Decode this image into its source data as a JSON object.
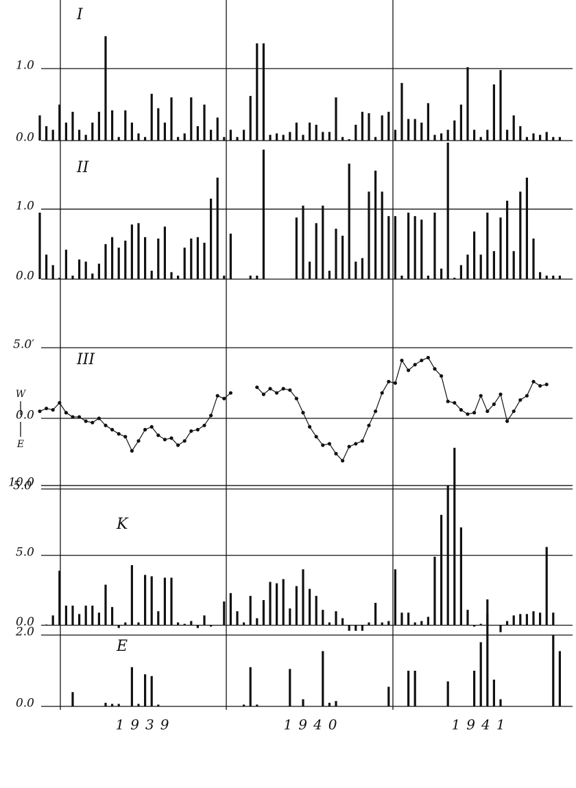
{
  "chart_data": [
    {
      "type": "bar",
      "label": "I",
      "ylim": [
        0,
        1.9
      ],
      "yticks": [
        {
          "value": 0,
          "label": "0.0"
        },
        {
          "value": 1,
          "label": "1.0"
        }
      ],
      "values": [
        0.35,
        0.2,
        0.15,
        0.5,
        0.25,
        0.4,
        0.15,
        0.08,
        0.25,
        0.4,
        1.45,
        0.42,
        0.05,
        0.42,
        0.25,
        0.1,
        0.05,
        0.65,
        0.45,
        0.25,
        0.6,
        0.05,
        0.1,
        0.6,
        0.2,
        0.5,
        0.15,
        0.32,
        0.05,
        0.15,
        0.05,
        0.15,
        0.62,
        1.35,
        1.35,
        0.08,
        0.1,
        0.08,
        0.12,
        0.25,
        0.08,
        0.25,
        0.22,
        0.12,
        0.12,
        0.6,
        0.05,
        0.02,
        0.22,
        0.4,
        0.38,
        0.05,
        0.35,
        0.4,
        0.15,
        0.8,
        0.3,
        0.3,
        0.25,
        0.52,
        0.08,
        0.1,
        0.15,
        0.28,
        0.5,
        1.02,
        0.15,
        0.05,
        0.15,
        0.78,
        0.98,
        0.15,
        0.35,
        0.2,
        0.05,
        0.1,
        0.08,
        0.12,
        0.05,
        0.05
      ]
    },
    {
      "type": "bar",
      "label": "II",
      "ylim": [
        0,
        1.93
      ],
      "yticks": [
        {
          "value": 0,
          "label": "0.0"
        },
        {
          "value": 1,
          "label": "1.0"
        }
      ],
      "values": [
        0.95,
        0.35,
        0.2,
        0.02,
        0.42,
        0.05,
        0.28,
        0.25,
        0.08,
        0.22,
        0.5,
        0.6,
        0.45,
        0.55,
        0.78,
        0.8,
        0.6,
        0.12,
        0.58,
        0.75,
        0.1,
        0.05,
        0.45,
        0.58,
        0.6,
        0.52,
        1.15,
        1.45,
        0.05,
        0.65,
        0,
        0,
        0.05,
        0.05,
        1.85,
        0,
        0,
        0,
        0,
        0.88,
        1.05,
        0.25,
        0.8,
        1.05,
        0.12,
        0.72,
        0.62,
        1.65,
        0.25,
        0.3,
        1.25,
        1.55,
        1.25,
        0.9,
        0.9,
        0.05,
        0.95,
        0.9,
        0.85,
        0.05,
        0.95,
        0.15,
        1.95,
        0.02,
        0.2,
        0.35,
        0.68,
        0.35,
        0.95,
        0.4,
        0.88,
        1.12,
        0.4,
        1.25,
        1.45,
        0.58,
        0.1,
        0.05,
        0.05,
        0.05
      ]
    },
    {
      "type": "line",
      "label": "III",
      "ylim": [
        -5,
        5
      ],
      "yticks": [
        {
          "value": -5,
          "label": "5.0′"
        },
        {
          "value": 0,
          "label": "0.0"
        },
        {
          "value": 5,
          "label": "5.0′"
        }
      ],
      "direction_labels": [
        "W",
        "E"
      ],
      "values": [
        0.5,
        0.7,
        0.6,
        1.1,
        0.4,
        0.1,
        0.1,
        -0.2,
        -0.3,
        0,
        -0.5,
        -0.8,
        -1.1,
        -1.3,
        -2.3,
        -1.6,
        -0.8,
        -0.6,
        -1.2,
        -1.5,
        -1.4,
        -1.9,
        -1.6,
        -0.9,
        -0.8,
        -0.5,
        0.2,
        1.6,
        1.4,
        1.8,
        null,
        null,
        null,
        2.2,
        1.7,
        2.1,
        1.8,
        2.1,
        2.0,
        1.4,
        0.4,
        -0.6,
        -1.3,
        -1.9,
        -1.8,
        -2.5,
        -3.0,
        -2.0,
        -1.8,
        -1.6,
        -0.5,
        0.5,
        1.8,
        2.6,
        2.5,
        4.1,
        3.4,
        3.8,
        4.1,
        4.3,
        3.5,
        3.0,
        1.2,
        1.1,
        0.6,
        0.3,
        0.4,
        1.6,
        0.5,
        1.0,
        1.7,
        -0.2,
        0.5,
        1.3,
        1.6,
        2.6,
        2.3,
        2.4,
        null,
        null
      ]
    },
    {
      "type": "bar",
      "label": "K",
      "ylim": [
        -1,
        13.3
      ],
      "yticks": [
        {
          "value": 0,
          "label": "0.0"
        },
        {
          "value": 5,
          "label": "5.0"
        },
        {
          "value": 10,
          "label": "10.0"
        }
      ],
      "values": [
        0,
        0.05,
        0.7,
        3.9,
        1.4,
        1.4,
        0.8,
        1.4,
        1.4,
        0.9,
        2.9,
        1.3,
        -0.2,
        0.2,
        4.3,
        0.2,
        3.6,
        3.5,
        1.0,
        3.4,
        3.4,
        0.2,
        0.1,
        0.3,
        -0.2,
        0.7,
        -0.1,
        0,
        1.7,
        2.3,
        1.0,
        0.2,
        2.1,
        0.5,
        1.8,
        3.1,
        3.0,
        3.3,
        1.2,
        2.8,
        4.0,
        2.6,
        2.1,
        1.1,
        0.2,
        1.0,
        0.5,
        -0.4,
        -0.4,
        -0.4,
        0.2,
        1.6,
        0.2,
        0.3,
        4.0,
        0.9,
        0.9,
        0.2,
        0.3,
        0.6,
        4.9,
        7.9,
        10.0,
        12.7,
        7.0,
        1.1,
        -0.1,
        0.1,
        0.8,
        0,
        -0.5,
        0.3,
        0.7,
        0.8,
        0.8,
        1.0,
        0.9,
        5.6,
        0.9,
        0
      ]
    },
    {
      "type": "bar",
      "label": "E",
      "ylim": [
        0,
        3.5
      ],
      "yticks": [
        {
          "value": 0,
          "label": "0.0"
        },
        {
          "value": 2,
          "label": "2.0"
        }
      ],
      "values": [
        0,
        0,
        0,
        0,
        0,
        0.4,
        0,
        0,
        0,
        0,
        0.1,
        0.07,
        0.07,
        0,
        1.1,
        0.07,
        0.9,
        0.85,
        0.05,
        0,
        0,
        0,
        0,
        0,
        0,
        0,
        0,
        0,
        0,
        0,
        0,
        0.05,
        1.1,
        0.05,
        0,
        0,
        0,
        0,
        1.05,
        0,
        0.2,
        0,
        0,
        1.55,
        0.1,
        0.15,
        0,
        0,
        0,
        0,
        0,
        0,
        0,
        0.55,
        0,
        0,
        1.0,
        1.0,
        0,
        0,
        0,
        0,
        0.7,
        0,
        0,
        0,
        1.0,
        1.8,
        3.0,
        0.75,
        0.2,
        0,
        0,
        0,
        0,
        0,
        0,
        0,
        2.0,
        1.55
      ]
    }
  ],
  "years": [
    "1939",
    "1940",
    "1941"
  ]
}
